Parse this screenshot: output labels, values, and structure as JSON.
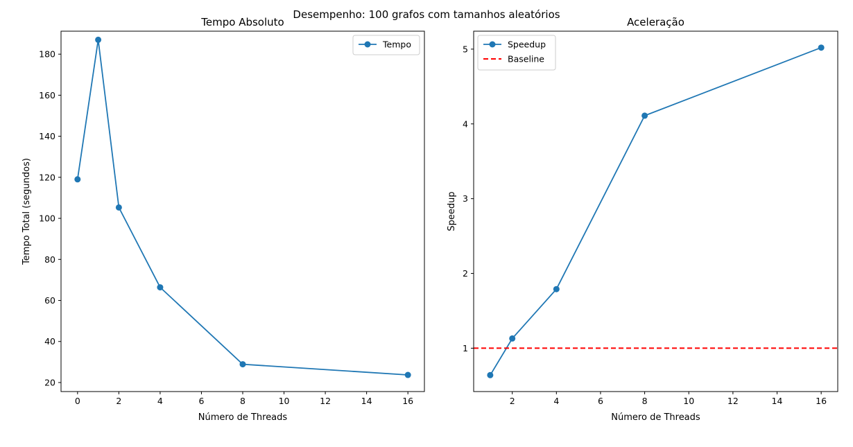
{
  "suptitle": "Desempenho: 100 grafos com tamanhos aleatórios",
  "colors": {
    "series": "#1f77b4",
    "baseline": "#ff0000"
  },
  "chart_data": [
    {
      "type": "line",
      "title": "Tempo Absoluto",
      "xlabel": "Número de Threads",
      "ylabel": "Tempo Total (segundos)",
      "xlim": [
        -0.8,
        16.8
      ],
      "ylim": [
        15.6,
        191.2
      ],
      "xticks": [
        0,
        2,
        4,
        6,
        8,
        10,
        12,
        14,
        16
      ],
      "yticks": [
        20,
        40,
        60,
        80,
        100,
        120,
        140,
        160,
        180
      ],
      "legend": {
        "placement": "top-right",
        "entries": [
          "Tempo"
        ]
      },
      "grid": false,
      "series": [
        {
          "name": "Tempo",
          "marker": "circle",
          "linestyle": "solid",
          "x": [
            0,
            1,
            2,
            4,
            8,
            16
          ],
          "y": [
            119,
            187,
            105.3,
            66.4,
            28.9,
            23.7
          ]
        }
      ]
    },
    {
      "type": "line",
      "title": "Aceleração",
      "xlabel": "Número de Threads",
      "ylabel": "Speedup",
      "xlim": [
        0.25,
        16.75
      ],
      "ylim": [
        0.42,
        5.24
      ],
      "xticks": [
        2,
        4,
        6,
        8,
        10,
        12,
        14,
        16
      ],
      "yticks": [
        1,
        2,
        3,
        4,
        5
      ],
      "legend": {
        "placement": "top-left",
        "entries": [
          "Speedup",
          "Baseline"
        ]
      },
      "grid": false,
      "series": [
        {
          "name": "Speedup",
          "marker": "circle",
          "linestyle": "solid",
          "x": [
            1,
            2,
            4,
            8,
            16
          ],
          "y": [
            0.64,
            1.13,
            1.79,
            4.11,
            5.02
          ]
        },
        {
          "name": "Baseline",
          "marker": "none",
          "linestyle": "dashed",
          "hline": 1
        }
      ]
    }
  ]
}
